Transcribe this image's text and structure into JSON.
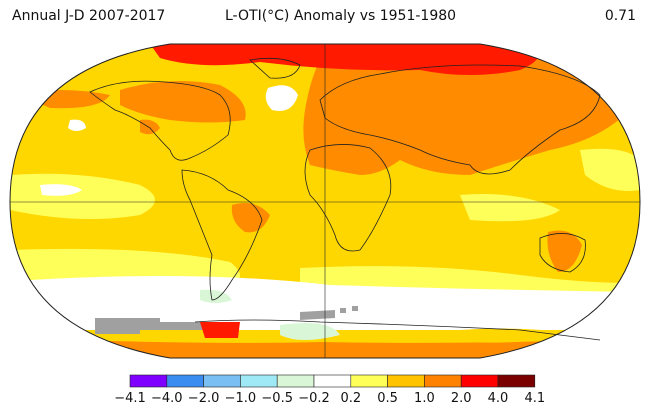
{
  "header": {
    "period": "Annual J-D 2007-2017",
    "title": "L-OTI(°C) Anomaly vs 1951-1980",
    "global_mean": "0.71"
  },
  "legend": {
    "tick_labels": [
      "-4.1",
      "-4.0",
      "-2.0",
      "-1.0",
      "-0.5",
      "-0.2",
      "0.2",
      "0.5",
      "1.0",
      "2.0",
      "4.0",
      "4.1"
    ],
    "colors": [
      "#8000ff",
      "#3b8cf0",
      "#79bff3",
      "#9fe8f5",
      "#d9f7d7",
      "#ffffff",
      "#ffff5a",
      "#ffc300",
      "#ff8200",
      "#ff0000",
      "#7a0000"
    ]
  },
  "map": {
    "projection": "robinson",
    "base_color": "#ffd700",
    "ocean_light_color": "#ffff5a",
    "land_warm_color": "#ff8c00",
    "arctic_color": "#ff1a00",
    "cold_color": "#ffffff",
    "missing_data_color": "#a0a0a0",
    "coastline_color": "#222222"
  }
}
